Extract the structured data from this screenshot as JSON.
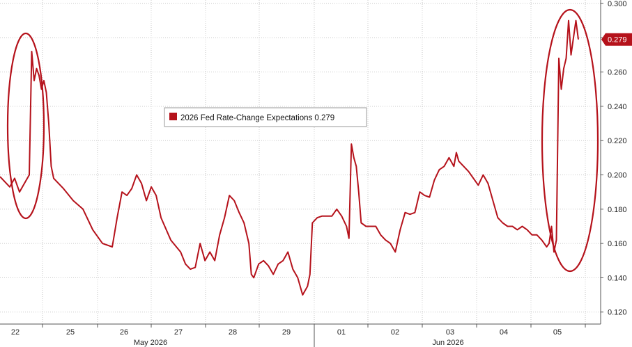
{
  "chart_data": {
    "type": "line",
    "legend": {
      "label": "2026 Fed Rate-Change Expectations 0.279",
      "color": "#b5121b",
      "placement": "top-center"
    },
    "last_value": 0.279,
    "last_value_label": "0.279",
    "accent": "#b5121b",
    "ylim": [
      0.113,
      0.302
    ],
    "yticks": [
      0.12,
      0.14,
      0.16,
      0.18,
      0.2,
      0.22,
      0.24,
      0.26,
      0.28,
      0.3
    ],
    "ytick_labels": [
      "0.120",
      "0.140",
      "0.160",
      "0.180",
      "0.200",
      "0.220",
      "0.240",
      "0.260",
      "0.280",
      "0.300"
    ],
    "x_labels": [
      "22",
      "25",
      "26",
      "27",
      "28",
      "29",
      "01",
      "02",
      "03",
      "04",
      "05"
    ],
    "month_labels": [
      "May 2026",
      "Jun 2026"
    ],
    "grid": true,
    "series": [
      {
        "points": [
          [
            0.0,
            0.199
          ],
          [
            0.1,
            0.196
          ],
          [
            0.2,
            0.193
          ],
          [
            0.3,
            0.198
          ],
          [
            0.4,
            0.19
          ],
          [
            0.5,
            0.195
          ],
          [
            0.6,
            0.2
          ],
          [
            0.65,
            0.272
          ],
          [
            0.7,
            0.255
          ],
          [
            0.75,
            0.262
          ],
          [
            0.8,
            0.258
          ],
          [
            0.85,
            0.25
          ],
          [
            0.9,
            0.255
          ],
          [
            0.95,
            0.248
          ],
          [
            1.0,
            0.23
          ],
          [
            1.05,
            0.205
          ],
          [
            1.1,
            0.198
          ],
          [
            1.3,
            0.192
          ],
          [
            1.5,
            0.185
          ],
          [
            1.7,
            0.18
          ],
          [
            1.9,
            0.168
          ],
          [
            2.1,
            0.16
          ],
          [
            2.3,
            0.158
          ],
          [
            2.4,
            0.175
          ],
          [
            2.5,
            0.19
          ],
          [
            2.6,
            0.188
          ],
          [
            2.7,
            0.192
          ],
          [
            2.8,
            0.2
          ],
          [
            2.9,
            0.195
          ],
          [
            3.0,
            0.185
          ],
          [
            3.1,
            0.193
          ],
          [
            3.2,
            0.188
          ],
          [
            3.3,
            0.175
          ],
          [
            3.5,
            0.162
          ],
          [
            3.7,
            0.155
          ],
          [
            3.8,
            0.148
          ],
          [
            3.9,
            0.145
          ],
          [
            4.0,
            0.146
          ],
          [
            4.1,
            0.16
          ],
          [
            4.2,
            0.15
          ],
          [
            4.3,
            0.155
          ],
          [
            4.4,
            0.15
          ],
          [
            4.5,
            0.165
          ],
          [
            4.6,
            0.175
          ],
          [
            4.7,
            0.188
          ],
          [
            4.8,
            0.185
          ],
          [
            4.9,
            0.178
          ],
          [
            5.0,
            0.172
          ],
          [
            5.1,
            0.16
          ],
          [
            5.15,
            0.142
          ],
          [
            5.2,
            0.14
          ],
          [
            5.3,
            0.148
          ],
          [
            5.4,
            0.15
          ],
          [
            5.5,
            0.147
          ],
          [
            5.6,
            0.142
          ],
          [
            5.7,
            0.148
          ],
          [
            5.8,
            0.15
          ],
          [
            5.9,
            0.155
          ],
          [
            6.0,
            0.145
          ],
          [
            6.1,
            0.14
          ],
          [
            6.2,
            0.13
          ],
          [
            6.3,
            0.135
          ],
          [
            6.35,
            0.142
          ],
          [
            6.4,
            0.172
          ],
          [
            6.5,
            0.175
          ],
          [
            6.6,
            0.176
          ],
          [
            6.8,
            0.176
          ],
          [
            6.9,
            0.18
          ],
          [
            7.0,
            0.176
          ],
          [
            7.1,
            0.17
          ],
          [
            7.15,
            0.163
          ],
          [
            7.2,
            0.218
          ],
          [
            7.25,
            0.21
          ],
          [
            7.3,
            0.205
          ],
          [
            7.35,
            0.19
          ],
          [
            7.4,
            0.172
          ],
          [
            7.5,
            0.17
          ],
          [
            7.7,
            0.17
          ],
          [
            7.8,
            0.165
          ],
          [
            7.9,
            0.162
          ],
          [
            8.0,
            0.16
          ],
          [
            8.1,
            0.155
          ],
          [
            8.2,
            0.168
          ],
          [
            8.3,
            0.178
          ],
          [
            8.4,
            0.177
          ],
          [
            8.5,
            0.178
          ],
          [
            8.6,
            0.19
          ],
          [
            8.7,
            0.188
          ],
          [
            8.8,
            0.187
          ],
          [
            8.9,
            0.197
          ],
          [
            9.0,
            0.203
          ],
          [
            9.1,
            0.205
          ],
          [
            9.2,
            0.21
          ],
          [
            9.3,
            0.205
          ],
          [
            9.35,
            0.213
          ],
          [
            9.4,
            0.208
          ],
          [
            9.5,
            0.205
          ],
          [
            9.6,
            0.202
          ],
          [
            9.7,
            0.198
          ],
          [
            9.8,
            0.194
          ],
          [
            9.9,
            0.2
          ],
          [
            10.0,
            0.195
          ],
          [
            10.1,
            0.185
          ],
          [
            10.2,
            0.175
          ],
          [
            10.3,
            0.172
          ],
          [
            10.4,
            0.17
          ],
          [
            10.5,
            0.17
          ],
          [
            10.6,
            0.168
          ],
          [
            10.7,
            0.17
          ],
          [
            10.8,
            0.168
          ],
          [
            10.9,
            0.165
          ],
          [
            11.0,
            0.165
          ],
          [
            11.1,
            0.162
          ],
          [
            11.2,
            0.158
          ],
          [
            11.25,
            0.16
          ],
          [
            11.3,
            0.17
          ],
          [
            11.35,
            0.155
          ],
          [
            11.4,
            0.162
          ],
          [
            11.45,
            0.268
          ],
          [
            11.5,
            0.25
          ],
          [
            11.55,
            0.262
          ],
          [
            11.6,
            0.268
          ],
          [
            11.65,
            0.29
          ],
          [
            11.7,
            0.27
          ],
          [
            11.75,
            0.28
          ],
          [
            11.8,
            0.29
          ],
          [
            11.85,
            0.279
          ]
        ]
      }
    ]
  }
}
